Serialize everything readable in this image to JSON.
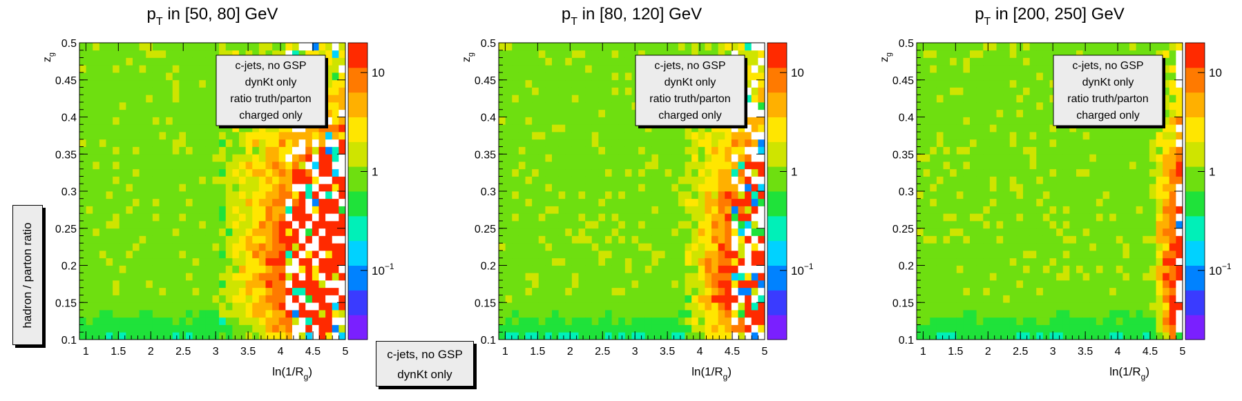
{
  "y_side_label": "hadron / parton ratio",
  "floating_box": [
    "c-jets, no GSP",
    "dynKt only"
  ],
  "colors": {
    "scale": [
      "#7a20ff",
      "#3a3bff",
      "#0082ff",
      "#00d2ff",
      "#00f0b8",
      "#1fe23a",
      "#6edf10",
      "#cfe400",
      "#ffe600",
      "#ffb000",
      "#ff7a00",
      "#ff2a00"
    ],
    "empty_bin": "#ffffff",
    "frame": "#000000",
    "box_fill": "#ececec"
  },
  "chart_data": [
    {
      "type": "heatmap",
      "title_main": "p",
      "title_sub": "T",
      "title_rest": " in [50, 80] GeV",
      "xlabel_main": "ln(1/R",
      "xlabel_sub": "g",
      "xlabel_end": ")",
      "ylabel_main": "z",
      "ylabel_sub": "g",
      "xlim": [
        0.9,
        5.0
      ],
      "ylim": [
        0.1,
        0.5
      ],
      "xticks": [
        "1",
        "1.5",
        "2",
        "2.5",
        "3",
        "3.5",
        "4",
        "4.5",
        "5"
      ],
      "yticks": [
        "0.1",
        "0.15",
        "0.2",
        "0.25",
        "0.3",
        "0.35",
        "0.4",
        "0.45",
        "0.5"
      ],
      "z_scale": "log",
      "zlim": [
        0.02,
        20
      ],
      "colorbar_labels": [
        {
          "value": 10,
          "base": "10",
          "exp": ""
        },
        {
          "value": 1,
          "base": "1",
          "exp": ""
        },
        {
          "value": 0.1,
          "base": "10",
          "exp": "−1"
        }
      ],
      "bins_x": 40,
      "bins_y": 40,
      "transition_x": 3.1,
      "sparse_x": 4.1,
      "legend": [
        "c-jets, no GSP",
        "dynKt only",
        "ratio truth/parton",
        "charged only"
      ],
      "legend_position": "top-right",
      "grid": false
    },
    {
      "type": "heatmap",
      "title_main": "p",
      "title_sub": "T",
      "title_rest": " in [80, 120] GeV",
      "xlabel_main": "ln(1/R",
      "xlabel_sub": "g",
      "xlabel_end": ")",
      "ylabel_main": "z",
      "ylabel_sub": "g",
      "xlim": [
        0.9,
        5.0
      ],
      "ylim": [
        0.1,
        0.5
      ],
      "xticks": [
        "1",
        "1.5",
        "2",
        "2.5",
        "3",
        "3.5",
        "4",
        "4.5",
        "5"
      ],
      "yticks": [
        "0.1",
        "0.15",
        "0.2",
        "0.25",
        "0.3",
        "0.35",
        "0.4",
        "0.45",
        "0.5"
      ],
      "z_scale": "log",
      "zlim": [
        0.02,
        20
      ],
      "colorbar_labels": [
        {
          "value": 10,
          "base": "10",
          "exp": ""
        },
        {
          "value": 1,
          "base": "1",
          "exp": ""
        },
        {
          "value": 0.1,
          "base": "10",
          "exp": "−1"
        }
      ],
      "bins_x": 40,
      "bins_y": 40,
      "transition_x": 3.75,
      "sparse_x": 4.5,
      "legend": [
        "c-jets, no GSP",
        "dynKt only",
        "ratio truth/parton",
        "charged only"
      ],
      "legend_position": "top-right",
      "grid": false
    },
    {
      "type": "heatmap",
      "title_main": "p",
      "title_sub": "T",
      "title_rest": " in [200, 250] GeV",
      "xlabel_main": "ln(1/R",
      "xlabel_sub": "g",
      "xlabel_end": ")",
      "ylabel_main": "z",
      "ylabel_sub": "g",
      "xlim": [
        0.9,
        5.0
      ],
      "ylim": [
        0.1,
        0.5
      ],
      "xticks": [
        "1",
        "1.5",
        "2",
        "2.5",
        "3",
        "3.5",
        "4",
        "4.5",
        "5"
      ],
      "yticks": [
        "0.1",
        "0.15",
        "0.2",
        "0.25",
        "0.3",
        "0.35",
        "0.4",
        "0.45",
        "0.5"
      ],
      "z_scale": "log",
      "zlim": [
        0.02,
        20
      ],
      "colorbar_labels": [
        {
          "value": 10,
          "base": "10",
          "exp": ""
        },
        {
          "value": 1,
          "base": "1",
          "exp": ""
        },
        {
          "value": 0.1,
          "base": "10",
          "exp": "−1"
        }
      ],
      "bins_x": 40,
      "bins_y": 40,
      "transition_x": 4.5,
      "sparse_x": 4.85,
      "legend": [
        "c-jets, no GSP",
        "dynKt only",
        "ratio truth/parton",
        "charged only"
      ],
      "legend_position": "top-right",
      "grid": false
    }
  ]
}
